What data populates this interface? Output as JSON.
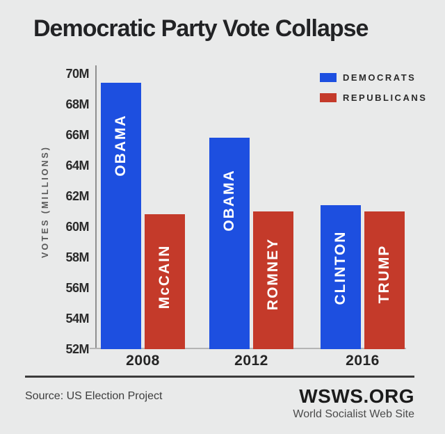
{
  "chart_data": {
    "type": "bar",
    "title": "Democratic Party Vote Collapse",
    "ylabel": "VOTES (MILLIONS)",
    "ylim": [
      52,
      70
    ],
    "ytick_step": 2,
    "yticks": [
      "70M",
      "68M",
      "66M",
      "64M",
      "62M",
      "60M",
      "58M",
      "56M",
      "54M",
      "52M"
    ],
    "categories": [
      "2008",
      "2012",
      "2016"
    ],
    "series": [
      {
        "name": "DEMOCRATS",
        "color": "#1d4fe0",
        "values": [
          69.4,
          65.8,
          61.4
        ],
        "bar_labels": [
          "OBAMA",
          "OBAMA",
          "CLINTON"
        ]
      },
      {
        "name": "REPUBLICANS",
        "color": "#c43a2a",
        "values": [
          60.8,
          61.0,
          61.0
        ],
        "bar_labels": [
          "McCAIN",
          "ROMNEY",
          "TRUMP"
        ]
      }
    ],
    "legend_position": "top-right",
    "grid": false
  },
  "footer": {
    "source": "Source: US Election Project",
    "brand": "WSWS.ORG",
    "tagline": "World Socialist Web Site"
  },
  "colors": {
    "background": "#e9eaea",
    "democrat_blue": "#1d4fe0",
    "republican_red": "#c43a2a",
    "title_text": "#222325",
    "axis_line": "#8f8f8f",
    "baseline": "#b4b4b4"
  }
}
